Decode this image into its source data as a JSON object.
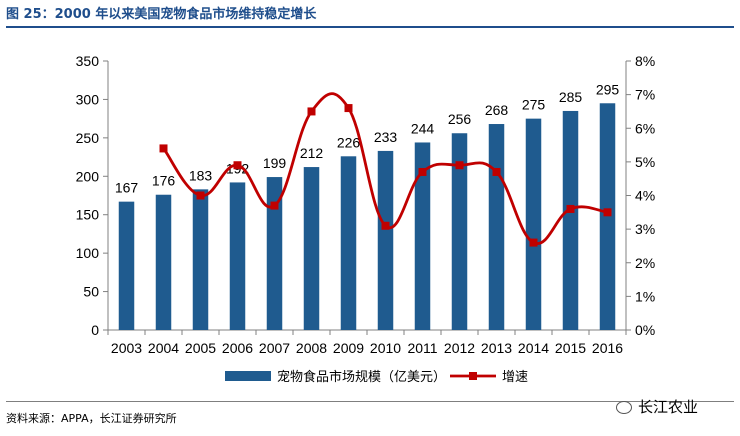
{
  "figure": {
    "title": "图 25：2000 年以来美国宠物食品市场维持稳定增长",
    "source": "资料来源：APPA，长江证券研究所",
    "watermark": "长江农业"
  },
  "colors": {
    "bar": "#1f5b8f",
    "line": "#c00000",
    "title": "#1f4e8c"
  },
  "chart_data": {
    "type": "bar",
    "categories": [
      "2003",
      "2004",
      "2005",
      "2006",
      "2007",
      "2008",
      "2009",
      "2010",
      "2011",
      "2012",
      "2013",
      "2014",
      "2015",
      "2016"
    ],
    "series": [
      {
        "name": "宠物食品市场规模（亿美元）",
        "type": "bar",
        "axis": "left",
        "values": [
          167,
          176,
          183,
          192,
          199,
          212,
          226,
          233,
          244,
          256,
          268,
          275,
          285,
          295
        ],
        "labels": [
          "167",
          "176",
          "183",
          "192",
          "199",
          "212",
          "226",
          "233",
          "244",
          "256",
          "268",
          "275",
          "285",
          "295"
        ]
      },
      {
        "name": "增速",
        "type": "line",
        "axis": "right",
        "values": [
          null,
          5.4,
          4.0,
          4.9,
          3.7,
          6.5,
          6.6,
          3.1,
          4.7,
          4.9,
          4.7,
          2.6,
          3.6,
          3.5
        ]
      }
    ],
    "y_left": {
      "min": 0,
      "max": 350,
      "ticks": [
        0,
        50,
        100,
        150,
        200,
        250,
        300,
        350
      ],
      "tick_labels": [
        "0",
        "50",
        "100",
        "150",
        "200",
        "250",
        "300",
        "350"
      ]
    },
    "y_right": {
      "min": 0,
      "max": 8,
      "ticks": [
        0,
        1,
        2,
        3,
        4,
        5,
        6,
        7,
        8
      ],
      "tick_labels": [
        "0%",
        "1%",
        "2%",
        "3%",
        "4%",
        "5%",
        "6%",
        "7%",
        "8%"
      ]
    },
    "grid": false,
    "legend": "bottom"
  }
}
